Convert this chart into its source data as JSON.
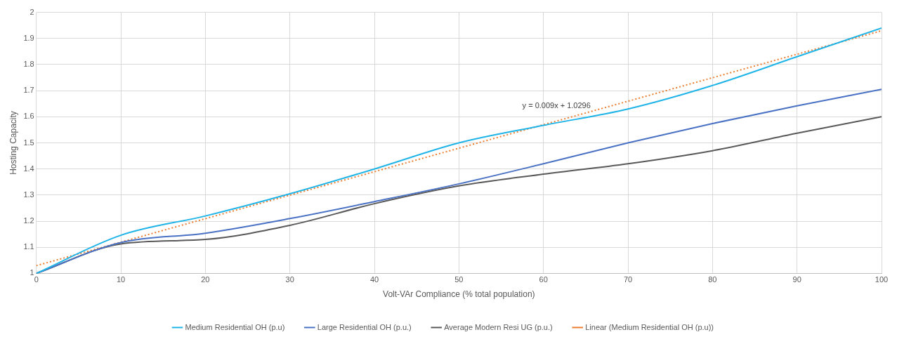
{
  "chart_data": {
    "type": "line",
    "xlabel": "Volt-VAr Compliance (% total population)",
    "ylabel": "Hosting Capacity",
    "x": [
      0,
      10,
      20,
      30,
      40,
      50,
      60,
      70,
      80,
      90,
      100
    ],
    "xlim": [
      0,
      100
    ],
    "xticks": [
      0,
      10,
      20,
      30,
      40,
      50,
      60,
      70,
      80,
      90,
      100
    ],
    "ylim": [
      1,
      2
    ],
    "yticks": [
      1,
      1.1,
      1.2,
      1.3,
      1.4,
      1.5,
      1.6,
      1.7,
      1.8,
      1.9,
      2
    ],
    "grid": true,
    "legend": "bottom",
    "marker": "none",
    "line_style": "solid",
    "annotations": [
      "y = 0.009x + 1.0296"
    ],
    "series": [
      {
        "name": "Medium Residential OH (p.u)",
        "color": "#1fb4e8",
        "values": [
          1.0,
          1.146,
          1.22,
          1.305,
          1.4,
          1.5,
          1.567,
          1.63,
          1.72,
          1.83,
          1.94
        ]
      },
      {
        "name": "Large Residential OH (p.u.)",
        "color": "#4a72c4",
        "values": [
          1.0,
          1.118,
          1.154,
          1.21,
          1.275,
          1.343,
          1.42,
          1.5,
          1.574,
          1.642,
          1.705
        ]
      },
      {
        "name": "Average Modern Resi UG (p.u.)",
        "color": "#595959",
        "values": [
          1.0,
          1.113,
          1.13,
          1.184,
          1.267,
          1.335,
          1.38,
          1.42,
          1.47,
          1.537,
          1.6
        ]
      },
      {
        "name": "Linear (Medium Residential OH (p.u))",
        "color": "#ed7d31",
        "type": "line",
        "line_style": "dotted",
        "x": [
          0,
          100
        ],
        "values": [
          1.0296,
          1.9296
        ]
      }
    ]
  }
}
